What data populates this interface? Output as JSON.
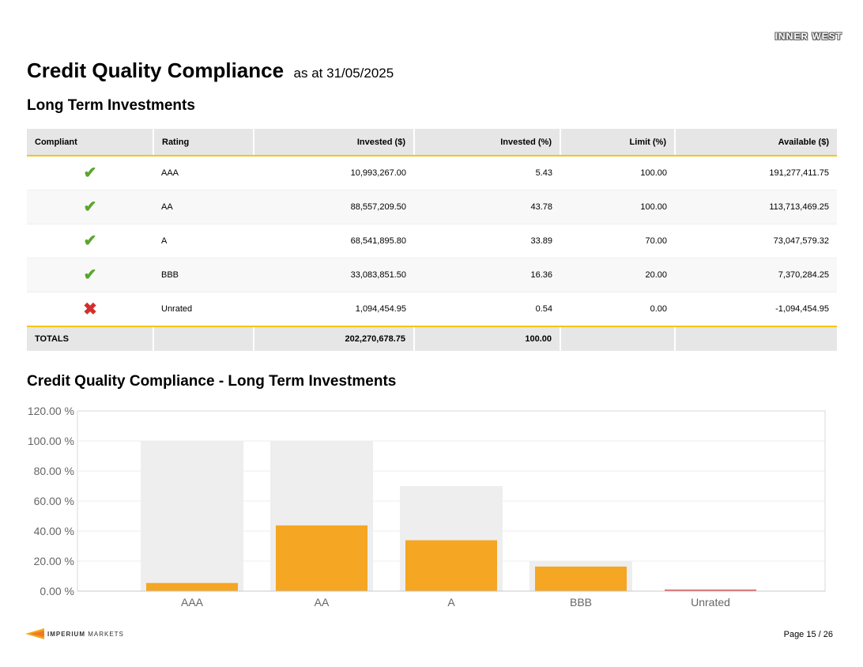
{
  "header": {
    "logo_text": "INNER WEST",
    "title": "Credit Quality Compliance",
    "subtitle": "as at 31/05/2025"
  },
  "table_section": {
    "heading": "Long Term Investments",
    "columns": [
      "Compliant",
      "Rating",
      "Invested ($)",
      "Invested (%)",
      "Limit (%)",
      "Available ($)"
    ],
    "rows": [
      {
        "compliant": true,
        "rating": "AAA",
        "invested": "10,993,267.00",
        "invested_pct": "5.43",
        "limit_pct": "100.00",
        "available": "191,277,411.75"
      },
      {
        "compliant": true,
        "rating": "AA",
        "invested": "88,557,209.50",
        "invested_pct": "43.78",
        "limit_pct": "100.00",
        "available": "113,713,469.25"
      },
      {
        "compliant": true,
        "rating": "A",
        "invested": "68,541,895.80",
        "invested_pct": "33.89",
        "limit_pct": "70.00",
        "available": "73,047,579.32"
      },
      {
        "compliant": true,
        "rating": "BBB",
        "invested": "33,083,851.50",
        "invested_pct": "16.36",
        "limit_pct": "20.00",
        "available": "7,370,284.25"
      },
      {
        "compliant": false,
        "rating": "Unrated",
        "invested": "1,094,454.95",
        "invested_pct": "0.54",
        "limit_pct": "0.00",
        "available": "-1,094,454.95"
      }
    ],
    "totals": {
      "label": "TOTALS",
      "invested": "202,270,678.75",
      "invested_pct": "100.00"
    },
    "icons": {
      "compliant": "check-icon",
      "non_compliant": "cross-icon"
    },
    "colors": {
      "check": "#5aa52d",
      "cross": "#d32f2f",
      "accent_border": "#f5c518"
    }
  },
  "chart_section": {
    "heading": "Credit Quality Compliance - Long Term Investments"
  },
  "chart_data": {
    "type": "bar",
    "categories": [
      "AAA",
      "AA",
      "A",
      "BBB",
      "Unrated"
    ],
    "series": [
      {
        "values": [
          100,
          100,
          70,
          20,
          0
        ],
        "color": "#eeeeee"
      },
      {
        "values": [
          5.43,
          43.78,
          33.89,
          16.36,
          0.54
        ],
        "color": "#f5a623"
      }
    ],
    "noncompliant_color": "#e35d5d",
    "ylim": [
      0,
      120
    ],
    "yticks": [
      0,
      20,
      40,
      60,
      80,
      100,
      120
    ],
    "ytick_labels": [
      "0.00 %",
      "20.00 %",
      "40.00 %",
      "60.00 %",
      "80.00 %",
      "100.00 %",
      "120.00 %"
    ],
    "grid": true
  },
  "footer": {
    "brand_bold": "IMPERIUM",
    "brand_light": " MARKETS",
    "page_number": "Page 15 / 26"
  }
}
